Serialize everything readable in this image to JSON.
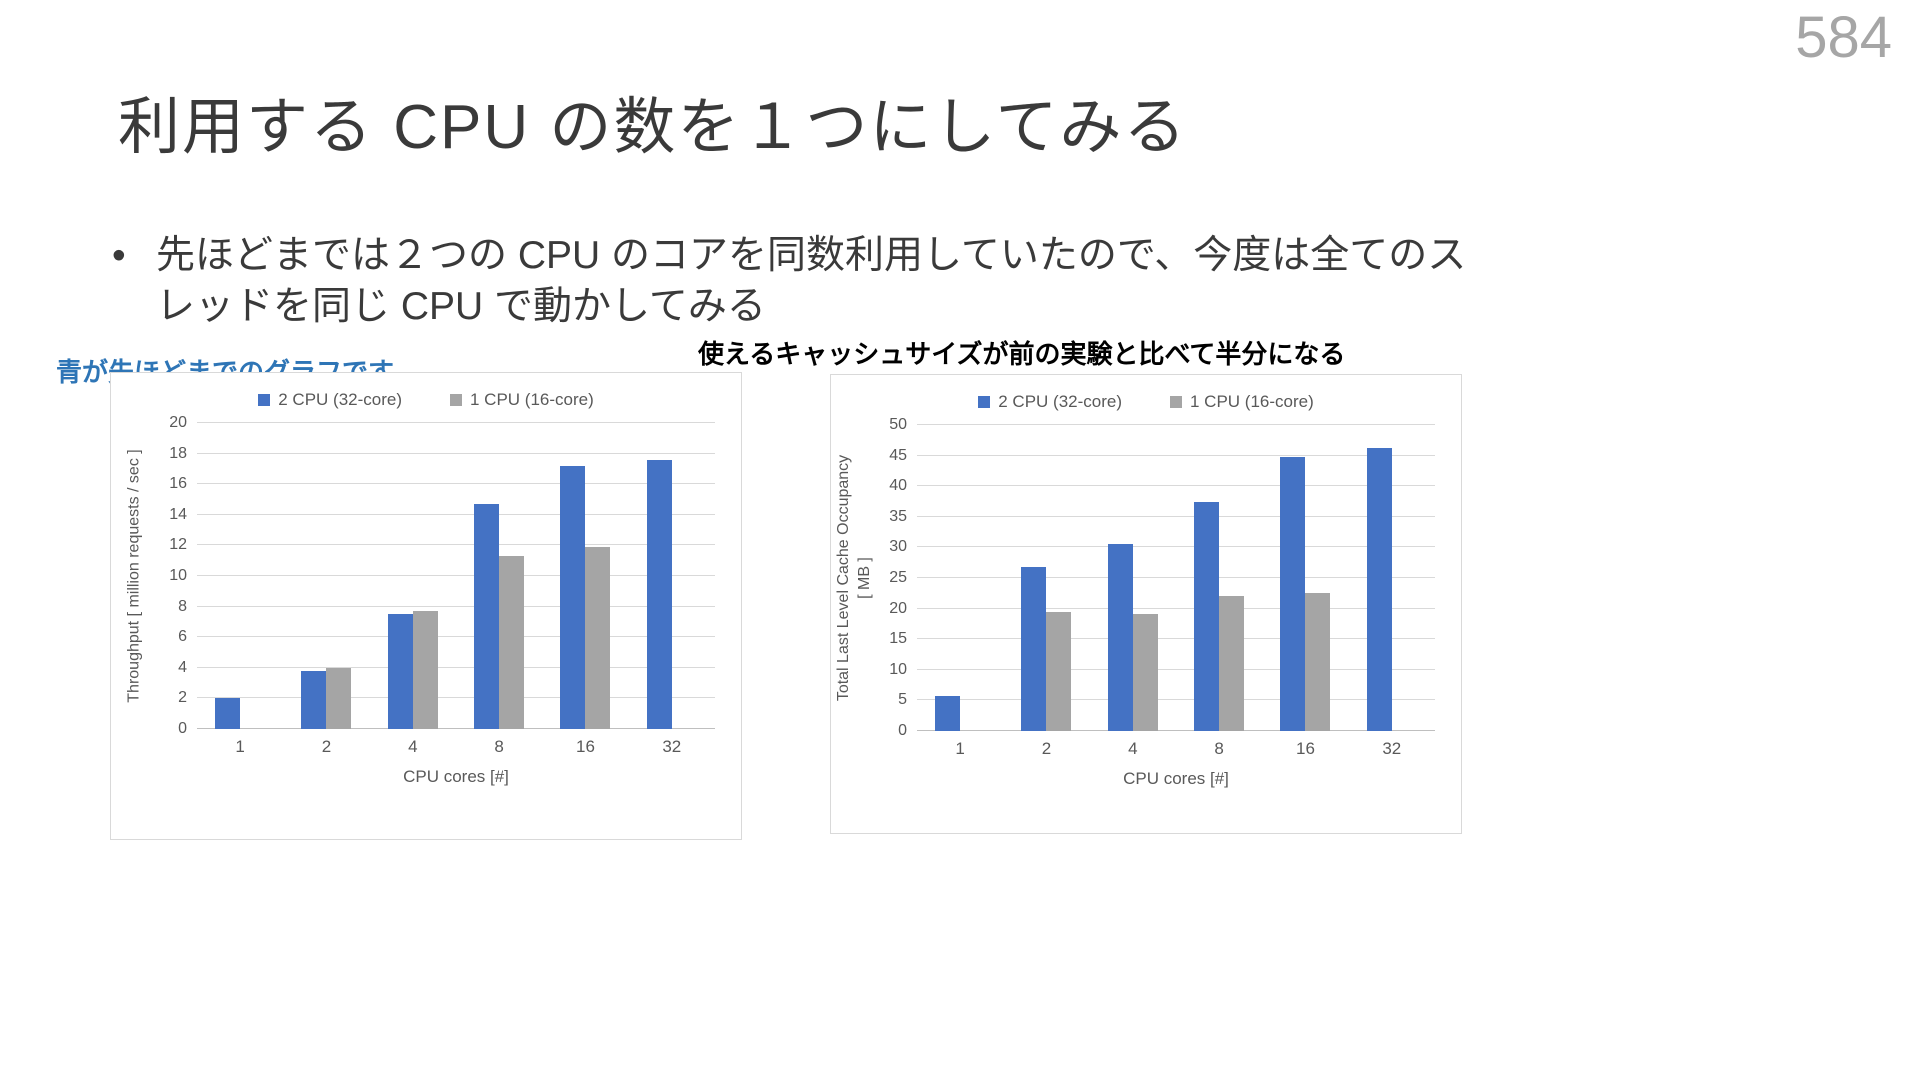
{
  "slide": {
    "page_number": "584",
    "title": "利用する CPU の数を１つにしてみる",
    "bullet_marker": "•",
    "bullet": "先ほどまでは２つの CPU  のコアを同数利用していたので、今度は全てのスレッドを同じ CPU で動かしてみる",
    "note_blue": "青が先ほどまでのグラフです",
    "note_black": "使えるキャッシュサイズが前の実験と比べて半分になる"
  },
  "colors": {
    "series_blue": "#4472C4",
    "series_gray": "#A5A5A5",
    "note_blue": "#2E75B6",
    "page_number_gray": "#A6A6A6"
  },
  "chart_data": [
    {
      "type": "bar",
      "title": "",
      "categories": [
        "1",
        "2",
        "4",
        "8",
        "16",
        "32"
      ],
      "series": [
        {
          "name": "2 CPU (32-core)",
          "color": "#4472C4",
          "values": [
            2,
            3.8,
            7.5,
            14.7,
            17.2,
            17.6
          ]
        },
        {
          "name": "1 CPU (16-core)",
          "color": "#A5A5A5",
          "values": [
            null,
            4,
            7.7,
            11.3,
            11.9,
            null
          ]
        }
      ],
      "xlabel": "CPU cores [#]",
      "ylabel": "Throughput [ million requests / sec ]",
      "ylabel_lines": [
        "Throughput [ million requests / sec ]"
      ],
      "ylim": [
        0,
        20
      ],
      "ytick_step": 2,
      "grid": true,
      "legend_position": "top"
    },
    {
      "type": "bar",
      "title": "",
      "categories": [
        "1",
        "2",
        "4",
        "8",
        "16",
        "32"
      ],
      "series": [
        {
          "name": "2 CPU (32-core)",
          "color": "#4472C4",
          "values": [
            5.8,
            26.8,
            30.5,
            37.5,
            44.8,
            46.3
          ]
        },
        {
          "name": "1 CPU (16-core)",
          "color": "#A5A5A5",
          "values": [
            null,
            19.5,
            19.2,
            22,
            22.5,
            null
          ]
        }
      ],
      "xlabel": "CPU cores [#]",
      "ylabel": "Total Last Level Cache Occupancy [ MB ]",
      "ylabel_lines": [
        "Total Last Level Cache Occupancy",
        "[ MB ]"
      ],
      "ylim": [
        0,
        50
      ],
      "ytick_step": 5,
      "grid": true,
      "legend_position": "top"
    }
  ]
}
